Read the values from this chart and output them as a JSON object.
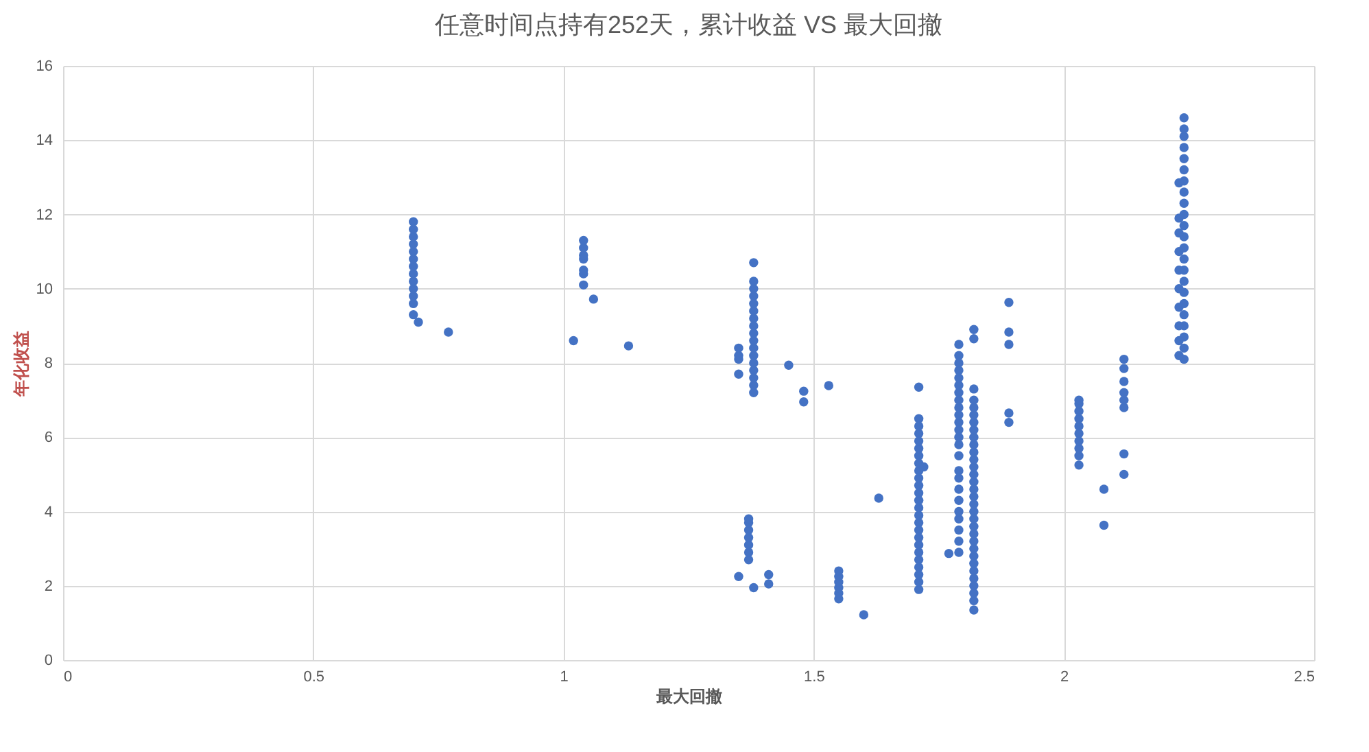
{
  "chart_data": {
    "type": "scatter",
    "title": "任意时间点持有252天，累计收益 VS 最大回撤",
    "xlabel": "最大回撤",
    "ylabel": "年化收益",
    "xlim": [
      0,
      2.5
    ],
    "xticks": [
      0,
      0.5,
      1,
      1.5,
      2,
      2.5
    ],
    "ylim": [
      0,
      16
    ],
    "yticks": [
      0,
      2,
      4,
      6,
      8,
      10,
      12,
      14,
      16
    ],
    "grid": true,
    "marker": "circle",
    "series": [
      {
        "color": "#4472c4",
        "x": [
          0.7,
          0.7,
          0.7,
          0.7,
          0.7,
          0.7,
          0.7,
          0.7,
          0.7,
          0.7,
          0.7,
          0.7,
          0.7,
          0.71,
          0.77,
          1.04,
          1.04,
          1.04,
          1.04,
          1.04,
          1.04,
          1.04,
          1.06,
          1.02,
          1.13,
          1.35,
          1.35,
          1.35,
          1.35,
          1.38,
          1.38,
          1.38,
          1.38,
          1.38,
          1.38,
          1.38,
          1.38,
          1.38,
          1.38,
          1.38,
          1.38,
          1.38,
          1.38,
          1.38,
          1.38,
          1.38,
          1.37,
          1.37,
          1.37,
          1.37,
          1.37,
          1.37,
          1.37,
          1.35,
          1.38,
          1.41,
          1.41,
          1.45,
          1.48,
          1.48,
          1.53,
          1.55,
          1.55,
          1.55,
          1.55,
          1.55,
          1.55,
          1.6,
          1.63,
          1.71,
          1.71,
          1.71,
          1.71,
          1.71,
          1.71,
          1.71,
          1.71,
          1.71,
          1.71,
          1.71,
          1.71,
          1.71,
          1.71,
          1.71,
          1.71,
          1.71,
          1.71,
          1.71,
          1.71,
          1.71,
          1.71,
          1.71,
          1.71,
          1.71,
          1.72,
          1.79,
          1.79,
          1.79,
          1.79,
          1.79,
          1.79,
          1.79,
          1.79,
          1.79,
          1.79,
          1.79,
          1.79,
          1.79,
          1.79,
          1.79,
          1.79,
          1.79,
          1.79,
          1.79,
          1.79,
          1.79,
          1.79,
          1.79,
          1.79,
          1.77,
          1.82,
          1.82,
          1.82,
          1.82,
          1.82,
          1.82,
          1.82,
          1.82,
          1.82,
          1.82,
          1.82,
          1.82,
          1.82,
          1.82,
          1.82,
          1.82,
          1.82,
          1.82,
          1.82,
          1.82,
          1.82,
          1.82,
          1.82,
          1.82,
          1.82,
          1.82,
          1.82,
          1.82,
          1.82,
          1.82,
          1.82,
          1.82,
          1.89,
          1.89,
          1.89,
          1.89,
          1.89,
          2.03,
          2.03,
          2.03,
          2.03,
          2.03,
          2.03,
          2.03,
          2.03,
          2.03,
          2.03,
          2.08,
          2.08,
          2.12,
          2.12,
          2.12,
          2.12,
          2.12,
          2.12,
          2.12,
          2.12,
          2.24,
          2.24,
          2.24,
          2.24,
          2.24,
          2.24,
          2.24,
          2.24,
          2.24,
          2.24,
          2.24,
          2.24,
          2.24,
          2.24,
          2.24,
          2.24,
          2.24,
          2.24,
          2.24,
          2.24,
          2.24,
          2.24,
          2.24,
          2.23,
          2.23,
          2.23,
          2.23,
          2.23,
          2.23,
          2.23,
          2.23,
          2.23,
          2.23
        ],
        "values": [
          9.6,
          9.8,
          10.0,
          10.2,
          10.4,
          10.6,
          10.8,
          11.0,
          11.2,
          11.4,
          11.6,
          11.8,
          9.3,
          9.1,
          8.83,
          10.1,
          10.4,
          10.5,
          10.8,
          10.9,
          11.1,
          11.3,
          9.72,
          8.6,
          8.46,
          7.7,
          8.1,
          8.2,
          8.4,
          7.2,
          7.4,
          7.6,
          7.8,
          8.0,
          8.2,
          8.4,
          8.6,
          8.8,
          9.0,
          9.2,
          9.4,
          9.6,
          9.8,
          10.0,
          10.2,
          10.7,
          2.7,
          2.9,
          3.1,
          3.3,
          3.5,
          3.7,
          3.8,
          2.25,
          1.95,
          2.3,
          2.05,
          7.94,
          7.24,
          6.95,
          7.39,
          1.65,
          1.8,
          1.95,
          2.1,
          2.25,
          2.4,
          1.22,
          4.36,
          1.9,
          2.1,
          2.3,
          2.5,
          2.7,
          2.9,
          3.1,
          3.3,
          3.5,
          3.7,
          3.9,
          4.1,
          4.3,
          4.5,
          4.7,
          4.9,
          5.1,
          5.3,
          5.5,
          5.7,
          5.9,
          6.1,
          6.3,
          6.5,
          7.35,
          5.2,
          2.9,
          3.2,
          3.5,
          3.8,
          4.0,
          4.3,
          4.6,
          4.9,
          5.1,
          5.5,
          5.8,
          6.0,
          6.2,
          6.4,
          6.6,
          6.8,
          7.0,
          7.2,
          7.4,
          7.6,
          7.8,
          8.0,
          8.2,
          8.5,
          2.87,
          1.35,
          1.6,
          1.8,
          2.0,
          2.2,
          2.4,
          2.6,
          2.8,
          3.0,
          3.2,
          3.4,
          3.6,
          3.8,
          4.0,
          4.2,
          4.4,
          4.6,
          4.8,
          5.0,
          5.2,
          5.4,
          5.6,
          5.8,
          6.0,
          6.2,
          6.4,
          6.6,
          6.8,
          7.0,
          7.3,
          8.9,
          8.65,
          9.63,
          8.83,
          8.5,
          6.65,
          6.4,
          5.25,
          5.5,
          5.7,
          5.9,
          6.1,
          6.3,
          6.5,
          6.7,
          6.9,
          7.0,
          4.6,
          3.63,
          5.0,
          5.55,
          6.8,
          7.0,
          7.2,
          7.5,
          7.85,
          8.1,
          8.1,
          8.4,
          8.7,
          9.0,
          9.3,
          9.6,
          9.9,
          10.2,
          10.5,
          10.8,
          11.1,
          11.4,
          11.7,
          12.0,
          12.3,
          12.6,
          12.9,
          13.2,
          13.5,
          13.8,
          14.1,
          14.3,
          14.6,
          8.2,
          8.6,
          9.0,
          9.5,
          10.0,
          10.5,
          11.0,
          11.5,
          11.9,
          12.85
        ]
      }
    ]
  }
}
